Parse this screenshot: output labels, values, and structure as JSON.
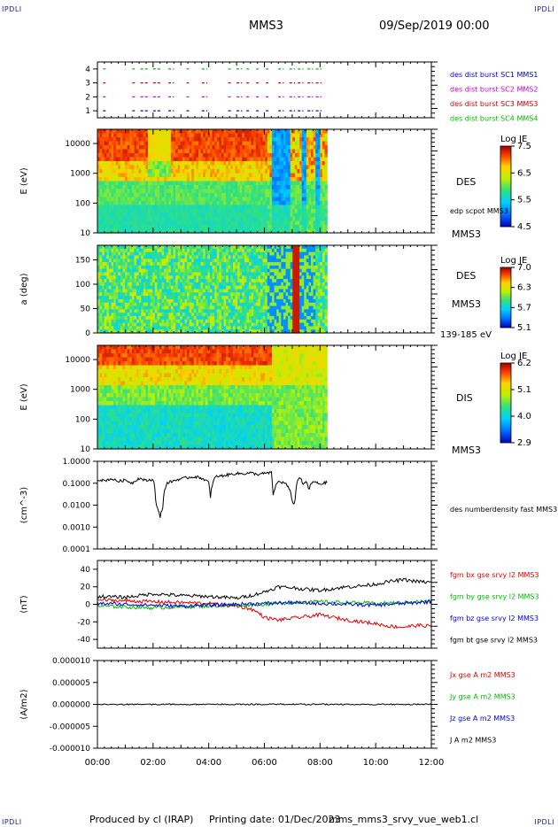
{
  "header": {
    "corner_label": "IPDLI",
    "spacecraft": "MMS3",
    "datetime": "09/Sep/2019 00:00"
  },
  "footer": {
    "produced_by": "Produced by cl (IRAP)",
    "printing_date": "Printing date: 01/Dec/2023",
    "filename": "mms_mms3_srvy_vue_web1.cl"
  },
  "colors": {
    "mms1": "#0000cc",
    "mms2": "#cc00cc",
    "mms3": "#cc0000",
    "mms4": "#00bb00",
    "bx": "#dd0000",
    "by": "#00bb00",
    "bz": "#0000dd",
    "bt": "#000000"
  },
  "chart_data": [
    {
      "type": "scatter",
      "panel": "burst-availability",
      "ylim": [
        0.5,
        4.5
      ],
      "y_ticks": [
        "1",
        "2",
        "3",
        "4"
      ],
      "series": [
        {
          "name": "des dist burst SC1 MMS1",
          "level": 1,
          "color": "#0000cc"
        },
        {
          "name": "des dist burst SC2 MMS2",
          "level": 2,
          "color": "#cc00cc"
        },
        {
          "name": "des dist burst SC3 MMS3",
          "level": 3,
          "color": "#cc0000"
        },
        {
          "name": "des dist burst SC4 MMS4",
          "level": 4,
          "color": "#00bb00"
        }
      ],
      "burst_intervals_hours": [
        [
          0.2,
          0.35
        ],
        [
          1.25,
          1.35
        ],
        [
          1.55,
          1.85
        ],
        [
          2.0,
          2.3
        ],
        [
          2.55,
          2.75
        ],
        [
          3.2,
          3.35
        ],
        [
          3.75,
          3.95
        ],
        [
          4.7,
          4.85
        ],
        [
          5.0,
          5.2
        ],
        [
          5.35,
          5.5
        ],
        [
          5.7,
          5.85
        ],
        [
          6.05,
          6.2
        ],
        [
          6.5,
          6.7
        ],
        [
          6.9,
          7.1
        ],
        [
          7.2,
          7.4
        ],
        [
          7.55,
          7.75
        ],
        [
          7.85,
          8.05
        ]
      ]
    },
    {
      "type": "heatmap",
      "panel": "des-energy-spectrogram",
      "ylabel": "E (eV)",
      "y_scale": "log",
      "ylim": [
        10,
        30000
      ],
      "y_ticks": [
        "10",
        "100",
        "1000",
        "10000"
      ],
      "side_label": "DES",
      "overlay_label": "edp scpot MMS3",
      "spacecraft_label": "MMS3",
      "colorbar": {
        "title": "Log JE",
        "ticks": [
          "7.5",
          "6.5",
          "5.5",
          "4.5"
        ],
        "range": [
          4.5,
          7.5
        ]
      },
      "data_end_hour": 8.25
    },
    {
      "type": "heatmap",
      "panel": "des-pitch-angle",
      "ylabel": "a (deg)",
      "ylim": [
        0,
        180
      ],
      "y_ticks": [
        "0",
        "50",
        "100",
        "150"
      ],
      "side_label": "DES",
      "spacecraft_label": "MMS3",
      "energy_range_label": "139-185 eV",
      "colorbar": {
        "title": "Log JE",
        "ticks": [
          "7.0",
          "6.3",
          "5.7",
          "5.1"
        ],
        "range": [
          5.1,
          7.0
        ]
      },
      "data_end_hour": 8.25
    },
    {
      "type": "heatmap",
      "panel": "dis-energy-spectrogram",
      "ylabel": "E (eV)",
      "y_scale": "log",
      "ylim": [
        10,
        30000
      ],
      "y_ticks": [
        "10",
        "100",
        "1000",
        "10000"
      ],
      "side_label": "DIS",
      "spacecraft_label": "MMS3",
      "colorbar": {
        "title": "Log JE",
        "ticks": [
          "6.2",
          "5.1",
          "4.0",
          "2.9"
        ],
        "range": [
          2.9,
          6.2
        ]
      },
      "data_end_hour": 8.25
    },
    {
      "type": "line",
      "panel": "density",
      "ylabel": "(cm^-3)",
      "y_scale": "log",
      "ylim": [
        0.0001,
        1.0
      ],
      "y_ticks": [
        "1.0000",
        "0.1000",
        "0.0100",
        "0.0010",
        "0.0001"
      ],
      "series": [
        {
          "name": "des numberdensity fast MMS3",
          "color": "#000000",
          "x": [
            0.0,
            0.25,
            0.5,
            0.75,
            1.0,
            1.25,
            1.5,
            1.75,
            2.0,
            2.1,
            2.25,
            2.35,
            2.5,
            2.75,
            3.0,
            3.25,
            3.5,
            3.75,
            4.0,
            4.05,
            4.25,
            4.5,
            4.75,
            5.0,
            5.25,
            5.5,
            5.75,
            6.0,
            6.25,
            6.3,
            6.5,
            6.75,
            6.9,
            7.0,
            7.1,
            7.25,
            7.4,
            7.5,
            7.6,
            7.75,
            8.0,
            8.25
          ],
          "y": [
            0.15,
            0.13,
            0.16,
            0.12,
            0.14,
            0.1,
            0.17,
            0.13,
            0.15,
            0.01,
            0.0025,
            0.008,
            0.1,
            0.13,
            0.16,
            0.18,
            0.2,
            0.17,
            0.11,
            0.01,
            0.2,
            0.22,
            0.25,
            0.28,
            0.27,
            0.3,
            0.25,
            0.28,
            0.3,
            0.02,
            0.12,
            0.1,
            0.05,
            0.015,
            0.01,
            0.2,
            0.08,
            0.12,
            0.05,
            0.12,
            0.09,
            0.11
          ]
        }
      ]
    },
    {
      "type": "line",
      "panel": "magnetic-field",
      "ylabel": "(nT)",
      "ylim": [
        -50,
        50
      ],
      "y_ticks": [
        "40",
        "20",
        "0",
        "-20",
        "-40"
      ],
      "series": [
        {
          "name": "fgm bx gse srvy l2 MMS3",
          "color": "#dd0000",
          "x": [
            0,
            1,
            2,
            3,
            4,
            4.5,
            5,
            5.5,
            5.8,
            6,
            6.5,
            7,
            7.5,
            8,
            8.5,
            9,
            9.5,
            10,
            10.5,
            11,
            11.5,
            12
          ],
          "y": [
            5,
            4,
            3,
            2,
            1,
            -1,
            -2,
            -5,
            -10,
            -15,
            -18,
            -16,
            -14,
            -12,
            -15,
            -18,
            -20,
            -22,
            -25,
            -26,
            -24,
            -25
          ]
        },
        {
          "name": "fgm by gse srvy l2 MMS3",
          "color": "#00bb00",
          "x": [
            0,
            1,
            2,
            3,
            4,
            5,
            6,
            7,
            8,
            9,
            10,
            11,
            12
          ],
          "y": [
            -2,
            -3,
            -4,
            -3,
            -2,
            -1,
            0,
            2,
            3,
            2,
            1,
            2,
            4
          ]
        },
        {
          "name": "fgm bz gse srvy l2 MMS3",
          "color": "#0000dd",
          "x": [
            0,
            1,
            2,
            3,
            4,
            5,
            6,
            7,
            8,
            9,
            10,
            11,
            12
          ],
          "y": [
            1,
            0,
            -1,
            -2,
            -1,
            0,
            1,
            2,
            1,
            0,
            -1,
            1,
            3
          ]
        },
        {
          "name": "fgm bt gse srvy l2 MMS3",
          "color": "#000000",
          "x": [
            0,
            1,
            2,
            3,
            4,
            4.5,
            5,
            5.5,
            6,
            6.5,
            7,
            7.5,
            8,
            8.5,
            9,
            9.5,
            10,
            10.5,
            11,
            11.5,
            12
          ],
          "y": [
            9,
            8,
            12,
            10,
            9,
            8,
            7,
            10,
            14,
            20,
            19,
            17,
            16,
            18,
            20,
            21,
            23,
            26,
            28,
            26,
            25
          ]
        }
      ]
    },
    {
      "type": "line",
      "panel": "current-density",
      "ylabel": "(A/m2)",
      "ylim": [
        -0.0001,
        0.0001
      ],
      "y_ticks": [
        "0.000010",
        "0.000005",
        "0.000000",
        "-0.000005",
        "-0.000010"
      ],
      "series": [
        {
          "name": "Jx gse A m2 MMS3",
          "color": "#dd0000"
        },
        {
          "name": "Jy gse A m2 MMS3",
          "color": "#00bb00"
        },
        {
          "name": "Jz gse A m2 MMS3",
          "color": "#0000dd"
        },
        {
          "name": "J A m2 MMS3",
          "color": "#000000",
          "x": [
            0,
            12
          ],
          "y": [
            0,
            0
          ]
        }
      ],
      "x_ticks": [
        "00:00",
        "02:00",
        "04:00",
        "06:00",
        "08:00",
        "10:00",
        "12:00"
      ]
    }
  ]
}
